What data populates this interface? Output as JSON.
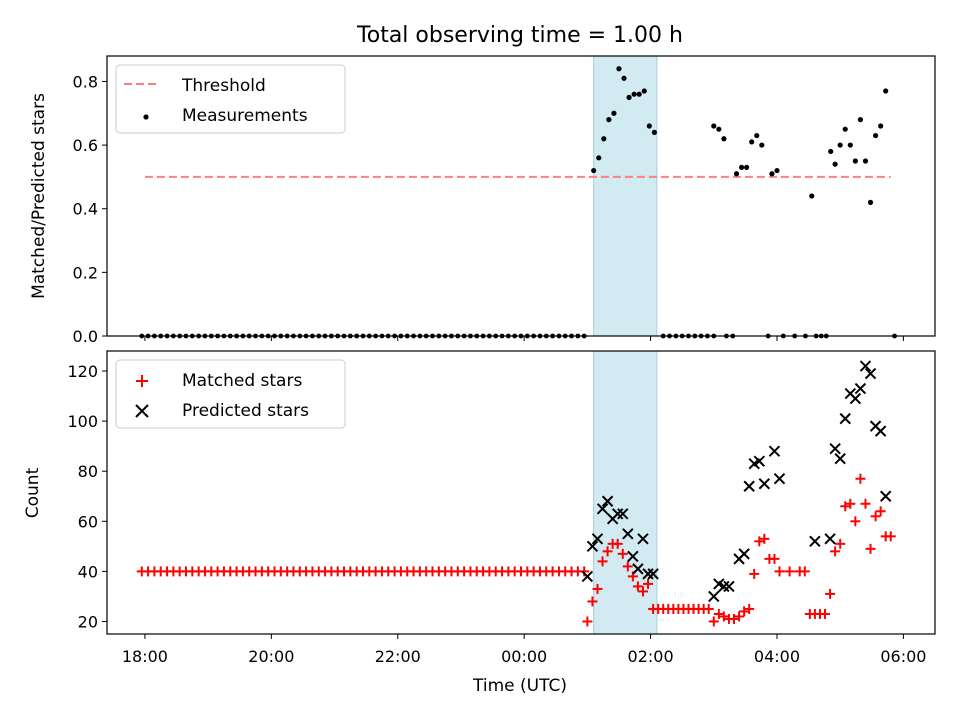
{
  "title": "Total observing time = 1.00 h",
  "chart_data": [
    {
      "type": "scatter",
      "ylabel": "Matched/Predicted stars",
      "ylim": [
        0,
        0.88
      ],
      "xlim": [
        -0.6,
        12.5
      ],
      "x_unit": "hours after 18:00 UTC",
      "yticks": [
        0.0,
        0.2,
        0.4,
        0.6,
        0.8
      ],
      "ytick_labels": [
        "0.0",
        "0.2",
        "0.4",
        "0.6",
        "0.8"
      ],
      "legend": {
        "position": "upper left",
        "entries": [
          "Threshold",
          "Measurements"
        ]
      },
      "shaded_span": {
        "x0": 7.1,
        "x1": 8.1,
        "color": "#add8e6"
      },
      "threshold": {
        "name": "Threshold",
        "y": 0.5,
        "x_start": 0,
        "x_end": 11.8,
        "color": "#ff7f7f",
        "style": "dashed"
      },
      "series": [
        {
          "name": "Measurements",
          "color": "#000000",
          "x": [
            7.1,
            7.18,
            7.26,
            7.34,
            7.42,
            7.5,
            7.58,
            7.66,
            7.74,
            7.82,
            7.9,
            7.98,
            8.06,
            9.0,
            9.08,
            9.16,
            9.36,
            9.44,
            9.52,
            9.6,
            9.68,
            9.76,
            9.92,
            10.0,
            10.55,
            10.85,
            10.92,
            11.0,
            11.08,
            11.16,
            11.24,
            11.32,
            11.4,
            11.48,
            11.56,
            11.64,
            11.72
          ],
          "y": [
            0.52,
            0.56,
            0.62,
            0.68,
            0.7,
            0.84,
            0.81,
            0.75,
            0.76,
            0.76,
            0.77,
            0.66,
            0.64,
            0.66,
            0.65,
            0.62,
            0.51,
            0.53,
            0.53,
            0.61,
            0.63,
            0.6,
            0.51,
            0.52,
            0.44,
            0.58,
            0.54,
            0.6,
            0.65,
            0.6,
            0.55,
            0.68,
            0.55,
            0.42,
            0.63,
            0.66,
            0.77
          ]
        }
      ],
      "zero_points_x_ranges": [
        [
          -0.05,
          7.02,
          0.1
        ],
        [
          8.2,
          9.0,
          0.1
        ]
      ],
      "zero_points_x": [
        9.2,
        9.3,
        9.86,
        10.1,
        10.28,
        10.45,
        10.62,
        10.7,
        10.78,
        11.86
      ]
    },
    {
      "type": "scatter",
      "xlabel": "Time (UTC)",
      "ylabel": "Count",
      "ylim": [
        15,
        128
      ],
      "xlim": [
        -0.6,
        12.5
      ],
      "yticks": [
        20,
        40,
        60,
        80,
        100,
        120
      ],
      "ytick_labels": [
        "20",
        "40",
        "60",
        "80",
        "100",
        "120"
      ],
      "xticks": [
        0,
        2,
        4,
        6,
        8,
        10,
        12
      ],
      "xtick_labels": [
        "18:00",
        "20:00",
        "22:00",
        "00:00",
        "02:00",
        "04:00",
        "06:00"
      ],
      "legend": {
        "position": "upper left",
        "entries": [
          "Matched stars",
          "Predicted stars"
        ]
      },
      "shaded_span": {
        "x0": 7.1,
        "x1": 8.1,
        "color": "#add8e6"
      },
      "series": [
        {
          "name": "Matched stars",
          "marker": "+",
          "color": "#ff0000",
          "constant_run": {
            "x_range": [
              -0.05,
              6.95,
              0.1
            ],
            "y": 40
          },
          "x": [
            7.0,
            7.08,
            7.16,
            7.24,
            7.32,
            7.4,
            7.48,
            7.56,
            7.64,
            7.72,
            7.8,
            7.88,
            7.96,
            8.04,
            8.12,
            8.2,
            8.28,
            8.36,
            8.44,
            8.52,
            8.6,
            8.68,
            8.76,
            8.84,
            8.92,
            9.0,
            9.08,
            9.16,
            9.24,
            9.32,
            9.4,
            9.48,
            9.56,
            9.64,
            9.72,
            9.8,
            9.88,
            9.96,
            10.04,
            10.2,
            10.36,
            10.44,
            10.52,
            10.6,
            10.68,
            10.76,
            10.84,
            10.92,
            11.0,
            11.08,
            11.16,
            11.24,
            11.32,
            11.4,
            11.48,
            11.56,
            11.64,
            11.72,
            11.8
          ],
          "y": [
            20,
            28,
            33,
            44,
            48,
            51,
            51,
            47,
            42,
            38,
            34,
            32,
            35,
            25,
            25,
            25,
            25,
            25,
            25,
            25,
            25,
            25,
            25,
            25,
            25,
            20,
            23,
            22,
            21,
            21,
            22,
            24,
            25,
            39,
            52,
            53,
            45,
            45,
            40,
            40,
            40,
            40,
            23,
            23,
            23,
            23,
            31,
            48,
            51,
            66,
            67,
            60,
            77,
            67,
            49,
            62,
            64,
            54,
            54
          ]
        },
        {
          "name": "Predicted stars",
          "marker": "x",
          "color": "#000000",
          "x": [
            7.0,
            7.08,
            7.16,
            7.24,
            7.32,
            7.4,
            7.48,
            7.56,
            7.64,
            7.72,
            7.8,
            7.88,
            7.96,
            8.04,
            9.0,
            9.08,
            9.16,
            9.24,
            9.4,
            9.48,
            9.56,
            9.64,
            9.72,
            9.8,
            9.96,
            10.04,
            10.6,
            10.84,
            10.92,
            11.0,
            11.08,
            11.16,
            11.24,
            11.32,
            11.4,
            11.48,
            11.56,
            11.64,
            11.72
          ],
          "y": [
            38,
            50,
            53,
            65,
            68,
            61,
            63,
            63,
            55,
            46,
            41,
            53,
            39,
            39,
            30,
            35,
            34,
            34,
            45,
            47,
            74,
            83,
            84,
            75,
            88,
            77,
            52,
            53,
            89,
            85,
            101,
            111,
            109,
            113,
            122,
            119,
            98,
            96,
            70
          ]
        }
      ]
    }
  ]
}
